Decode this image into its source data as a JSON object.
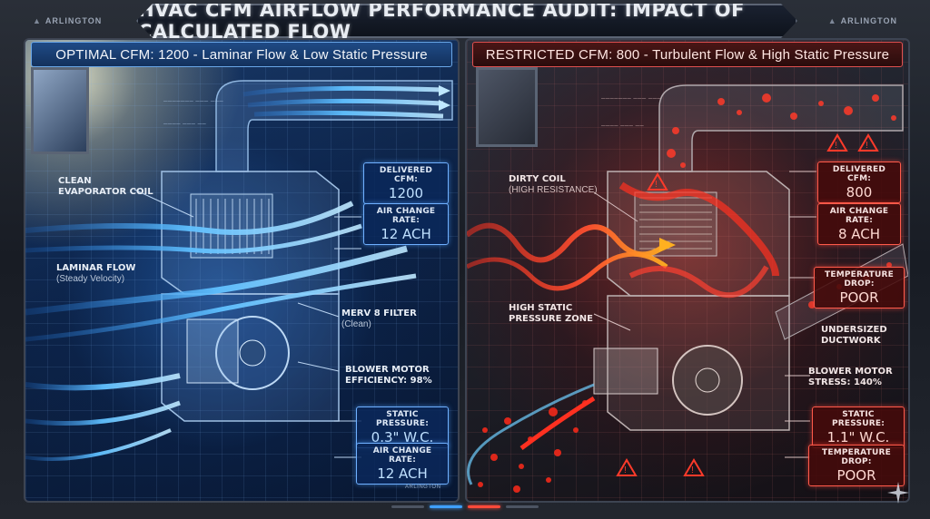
{
  "title": "HVAC CFM AIRFLOW PERFORMANCE AUDIT: IMPACT OF CALCULATED FLOW",
  "brand": "ARLINGTON",
  "left_panel": {
    "header": "OPTIMAL CFM: 1200 - Laminar Flow & Low Static Pressure",
    "callouts": {
      "coil": "CLEAN EVAPORATOR COIL",
      "flow": "LAMINAR FLOW",
      "flow_sub": "(Steady Velocity)",
      "filter": "MERV 8 FILTER",
      "filter_sub": "(Clean)",
      "blower": "BLOWER MOTOR EFFICIENCY: 98%"
    },
    "metrics": [
      {
        "label": "DELIVERED CFM:",
        "value": "1200"
      },
      {
        "label": "AIR CHANGE RATE:",
        "value": "12 ACH"
      },
      {
        "label": "STATIC PRESSURE:",
        "value": "0.3\" W.C."
      },
      {
        "label": "AIR CHANGE RATE:",
        "value": "12 ACH"
      }
    ],
    "footer_brand": "ARLINGTON"
  },
  "right_panel": {
    "header": "RESTRICTED CFM: 800 - Turbulent Flow & High Static Pressure",
    "callouts": {
      "coil": "DIRTY COIL",
      "coil_sub": "(HIGH RESISTANCE)",
      "static": "HIGH STATIC PRESSURE ZONE",
      "duct": "UNDERSIZED DUCTWORK",
      "blower": "BLOWER MOTOR STRESS: 140%"
    },
    "metrics": [
      {
        "label": "DELIVERED CFM:",
        "value": "800"
      },
      {
        "label": "AIR CHANGE RATE:",
        "value": "8 ACH"
      },
      {
        "label": "TEMPERATURE DROP:",
        "value": "POOR"
      },
      {
        "label": "STATIC PRESSURE:",
        "value": "1.1\" W.C."
      },
      {
        "label": "TEMPERATURE DROP:",
        "value": "POOR"
      }
    ]
  },
  "colors": {
    "optimal_accent": "#6fb0ff",
    "restricted_accent": "#ff5a4a"
  }
}
